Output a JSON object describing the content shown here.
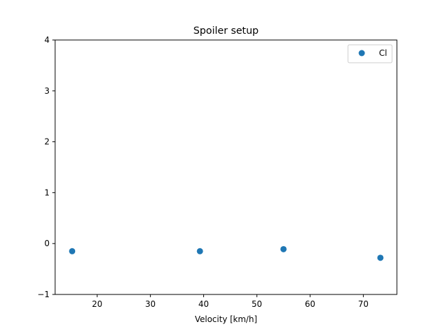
{
  "chart_data": {
    "type": "scatter",
    "title": "Spoiler setup",
    "xlabel": "Velocity [km/h]",
    "ylabel": "",
    "xlim": [
      12.1,
      76.3
    ],
    "ylim": [
      -1,
      4
    ],
    "xticks": [
      20,
      30,
      40,
      50,
      60,
      70
    ],
    "yticks": [
      -1,
      0,
      1,
      2,
      3,
      4
    ],
    "xtick_labels": [
      "20",
      "30",
      "40",
      "50",
      "60",
      "70"
    ],
    "ytick_labels": [
      "−1",
      "0",
      "1",
      "2",
      "3",
      "4"
    ],
    "grid": false,
    "legend_position": "top-right",
    "series": [
      {
        "name": "Cl",
        "color": "#1f77b4",
        "x": [
          15.3,
          39.3,
          55.0,
          73.2
        ],
        "y": [
          -0.15,
          -0.15,
          -0.11,
          -0.28
        ]
      }
    ]
  }
}
